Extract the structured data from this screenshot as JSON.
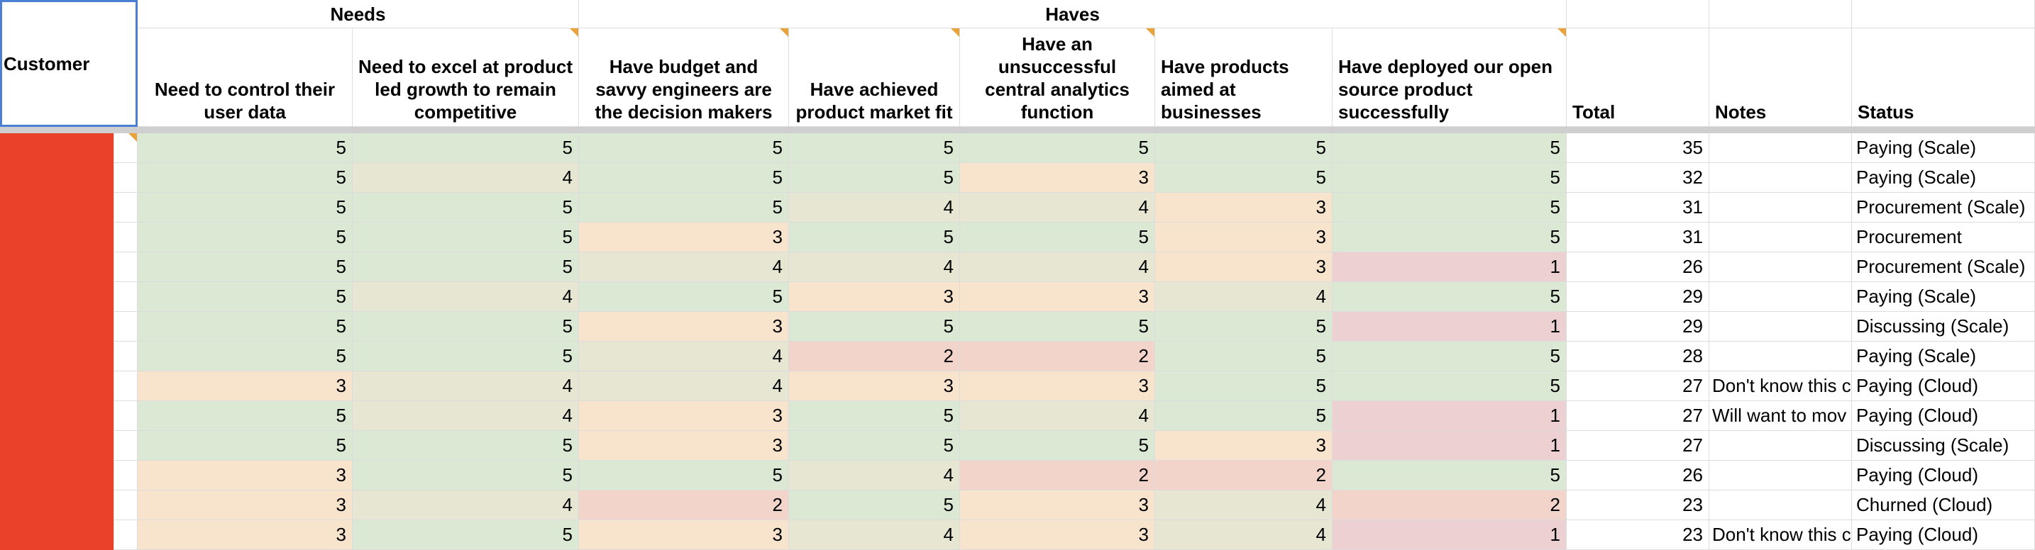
{
  "header": {
    "customer": "Customer",
    "groups": [
      "Needs",
      "Haves"
    ],
    "columns": [
      "Need to control their user data",
      "Need to excel at product led growth to remain competitive",
      "Have budget and savvy engineers are the decision makers",
      "Have achieved product market fit",
      "Have an unsuccessful central analytics function",
      "Have products aimed at businesses",
      "Have deployed our open source product successfully",
      "Total",
      "Notes",
      "Status"
    ]
  },
  "score_colors": {
    "1": "#edd0d2",
    "2": "#f2d4cb",
    "3": "#f8e4cd",
    "4": "#e7e6d2",
    "5": "#dbe8d4"
  },
  "customer_color": "#e8432a",
  "rows": [
    {
      "scores": [
        5,
        5,
        5,
        5,
        5,
        5,
        5
      ],
      "total": 35,
      "notes": null,
      "status": "Paying (Scale)"
    },
    {
      "scores": [
        5,
        4,
        5,
        5,
        3,
        5,
        5
      ],
      "total": 32,
      "notes": null,
      "status": "Paying (Scale)"
    },
    {
      "scores": [
        5,
        5,
        5,
        4,
        4,
        3,
        5
      ],
      "total": 31,
      "notes": null,
      "status": "Procurement (Scale)"
    },
    {
      "scores": [
        5,
        5,
        3,
        5,
        5,
        3,
        5
      ],
      "total": 31,
      "notes": null,
      "status": "Procurement"
    },
    {
      "scores": [
        5,
        5,
        4,
        4,
        4,
        3,
        1
      ],
      "total": 26,
      "notes": null,
      "status": "Procurement (Scale)"
    },
    {
      "scores": [
        5,
        4,
        5,
        3,
        3,
        4,
        5
      ],
      "total": 29,
      "notes": null,
      "status": "Paying (Scale)"
    },
    {
      "scores": [
        5,
        5,
        3,
        5,
        5,
        5,
        1
      ],
      "total": 29,
      "notes": null,
      "status": "Discussing (Scale)"
    },
    {
      "scores": [
        5,
        5,
        4,
        2,
        2,
        5,
        5
      ],
      "total": 28,
      "notes": null,
      "status": "Paying (Scale)"
    },
    {
      "scores": [
        3,
        4,
        4,
        3,
        3,
        5,
        5
      ],
      "total": 27,
      "notes": "Don't know this c",
      "status": "Paying (Cloud)"
    },
    {
      "scores": [
        5,
        4,
        3,
        5,
        4,
        5,
        1
      ],
      "total": 27,
      "notes": "Will want to mov",
      "status": "Paying (Cloud)"
    },
    {
      "scores": [
        5,
        5,
        3,
        5,
        5,
        3,
        1
      ],
      "total": 27,
      "notes": null,
      "status": "Discussing (Scale)"
    },
    {
      "scores": [
        3,
        5,
        5,
        4,
        2,
        2,
        5
      ],
      "total": 26,
      "notes": null,
      "status": "Paying (Cloud)"
    },
    {
      "scores": [
        3,
        4,
        2,
        5,
        3,
        4,
        2
      ],
      "total": 23,
      "notes": null,
      "status": "Churned (Cloud)"
    },
    {
      "scores": [
        3,
        5,
        3,
        4,
        3,
        4,
        1
      ],
      "total": 23,
      "notes": "Don't know this c",
      "status": "Paying (Cloud)"
    }
  ]
}
